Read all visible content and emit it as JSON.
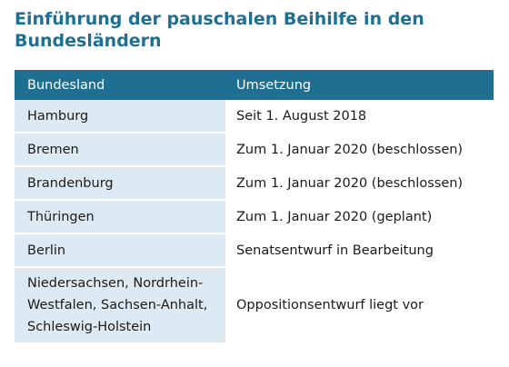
{
  "title": "Einführung der pauschalen Beihilfe in den Bundesländern",
  "table": {
    "headers": [
      "Bundesland",
      "Umsetzung"
    ],
    "rows": [
      {
        "state": "Hamburg",
        "status": "Seit 1. August 2018"
      },
      {
        "state": "Bremen",
        "status": "Zum 1. Januar 2020 (beschlossen)"
      },
      {
        "state": "Brandenburg",
        "status": "Zum 1. Januar 2020 (beschlossen)"
      },
      {
        "state": "Thüringen",
        "status": "Zum 1. Januar 2020 (geplant)"
      },
      {
        "state": "Berlin",
        "status": "Senatsentwurf in Bearbeitung"
      },
      {
        "state": "Niedersachsen, Nordrhein-\nWestfalen, Sachsen-Anhalt,\nSchleswig-Holstein",
        "status": "Oppositionsentwurf liegt vor"
      }
    ]
  },
  "colors": {
    "accent": "#1f6f93",
    "row_tint": "#ddeaf3"
  }
}
